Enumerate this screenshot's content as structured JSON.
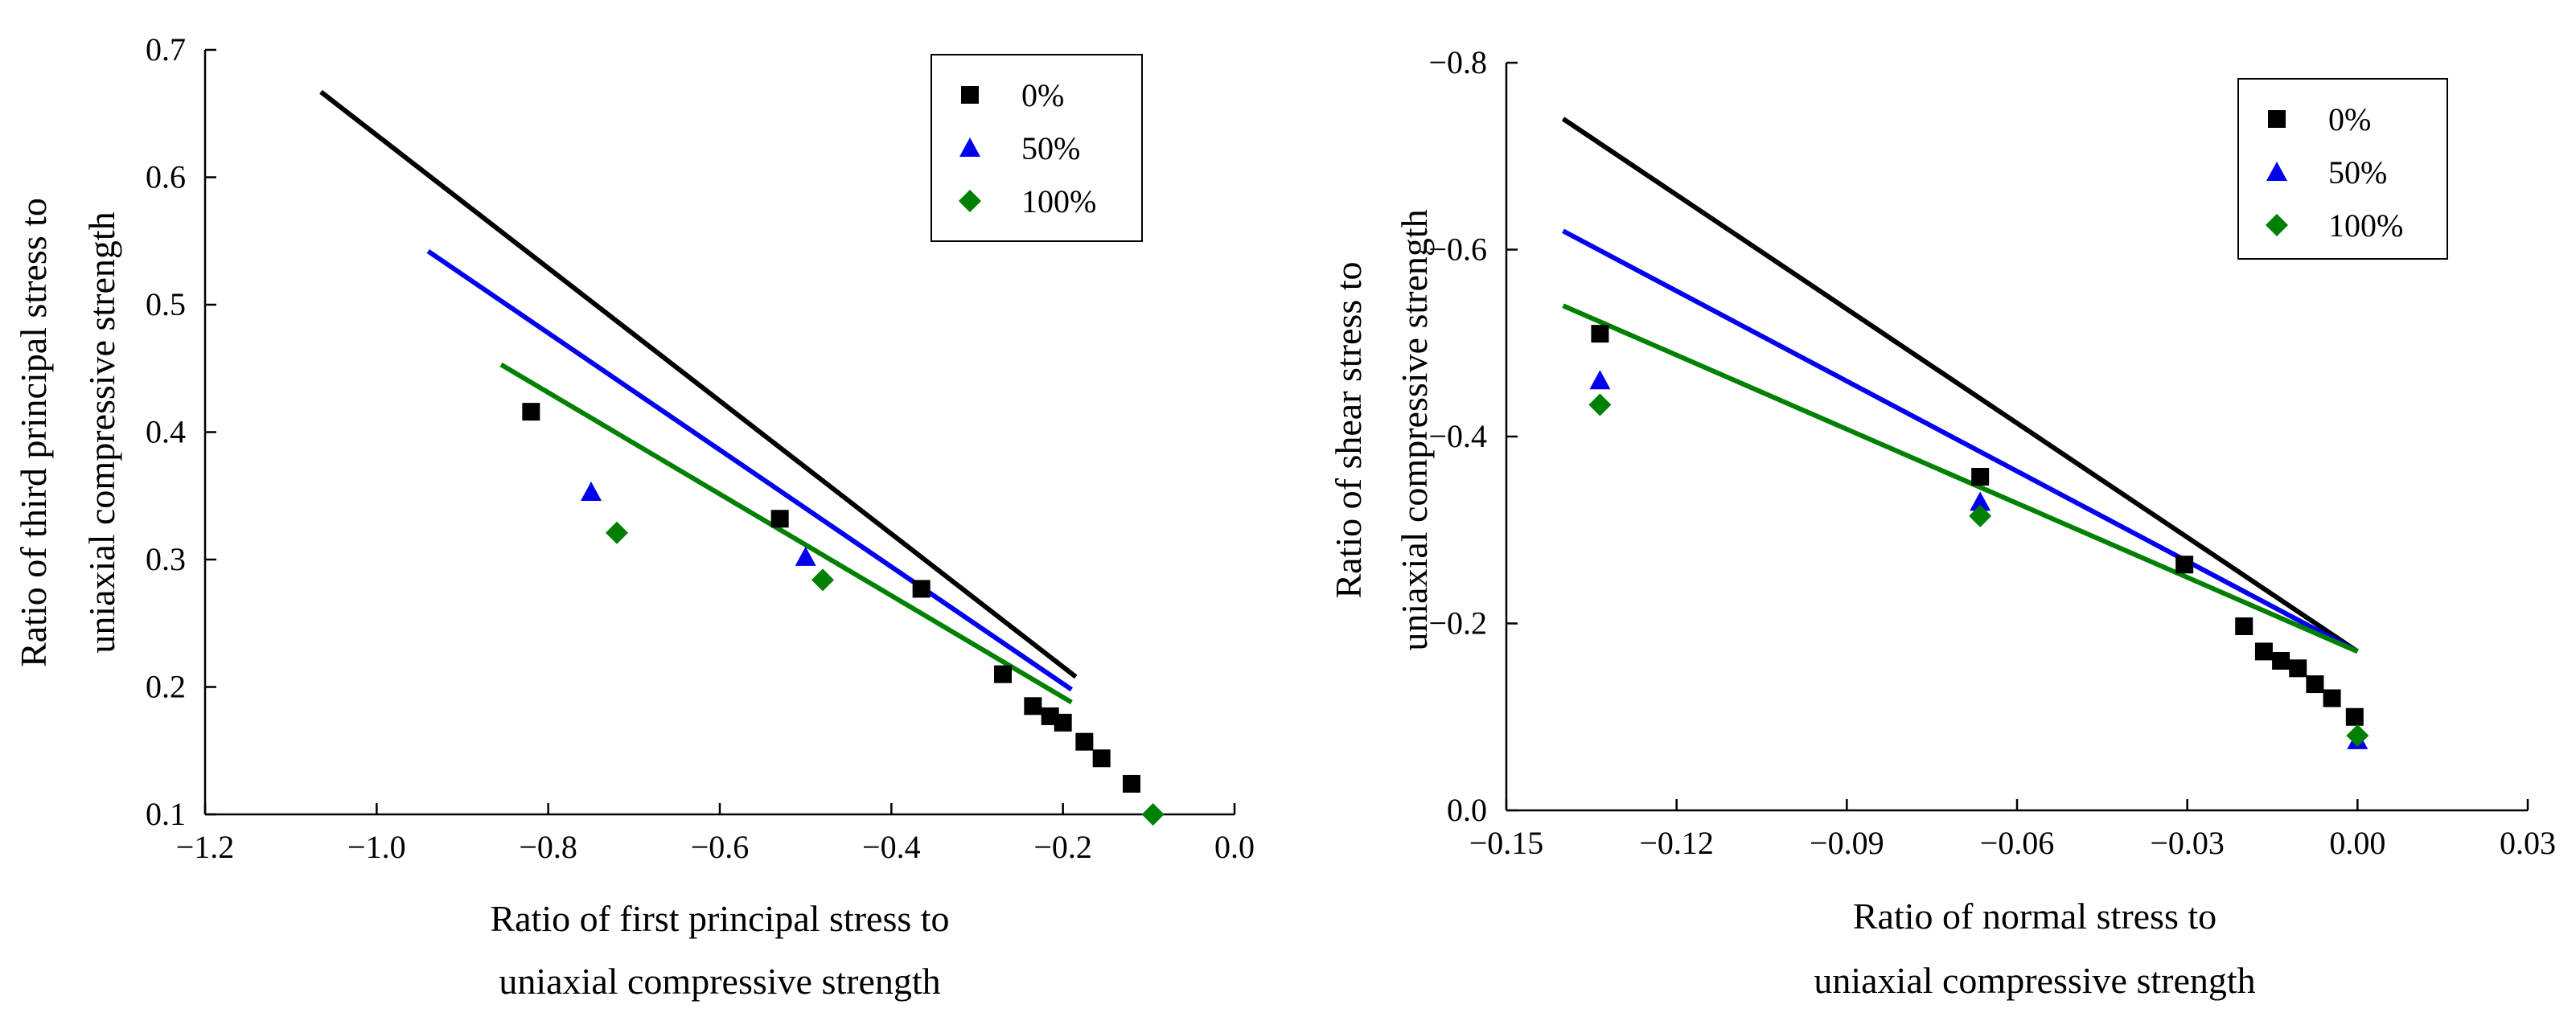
{
  "chart_data": [
    {
      "type": "scatter",
      "xlabel": [
        "Ratio of first principal stress to",
        "uniaxial compressive strength"
      ],
      "ylabel": [
        "Ratio of third principal stress to",
        "uniaxial compressive strength"
      ],
      "xlim": [
        -1.2,
        0.0
      ],
      "ylim": [
        0.1,
        0.7
      ],
      "xticks": [
        "−1.2",
        "−1.0",
        "−0.8",
        "−0.6",
        "−0.4",
        "−0.2",
        "0.0"
      ],
      "yticks": [
        "0.1",
        "0.2",
        "0.3",
        "0.4",
        "0.5",
        "0.6",
        "0.7"
      ],
      "legend": {
        "position": "top-right",
        "entries": [
          "0%",
          "50%",
          "100%"
        ]
      },
      "series": [
        {
          "name": "0%",
          "marker": "square",
          "color": "#000000",
          "points": [
            [
              -0.82,
              0.416
            ],
            [
              -0.53,
              0.332
            ],
            [
              -0.365,
              0.277
            ],
            [
              -0.27,
              0.21
            ],
            [
              -0.235,
              0.185
            ],
            [
              -0.215,
              0.177
            ],
            [
              -0.2,
              0.172
            ],
            [
              -0.175,
              0.157
            ],
            [
              -0.155,
              0.144
            ],
            [
              -0.12,
              0.124
            ]
          ]
        },
        {
          "name": "50%",
          "marker": "triangle",
          "color": "#0000ee",
          "points": [
            [
              -0.75,
              0.353
            ],
            [
              -0.5,
              0.302
            ]
          ]
        },
        {
          "name": "100%",
          "marker": "diamond",
          "color": "#008000",
          "points": [
            [
              -0.72,
              0.321
            ],
            [
              -0.48,
              0.284
            ],
            [
              -0.095,
              0.1
            ]
          ]
        }
      ],
      "lines": [
        {
          "name": "0%",
          "color": "#000000",
          "x": [
            -1.065,
            -0.185
          ],
          "y": [
            0.667,
            0.208
          ]
        },
        {
          "name": "50%",
          "color": "#0000ee",
          "x": [
            -0.94,
            -0.19
          ],
          "y": [
            0.542,
            0.198
          ]
        },
        {
          "name": "100%",
          "color": "#008000",
          "x": [
            -0.855,
            -0.19
          ],
          "y": [
            0.453,
            0.188
          ]
        }
      ]
    },
    {
      "type": "scatter",
      "xlabel": [
        "Ratio of normal stress to",
        "uniaxial compressive strength"
      ],
      "ylabel": [
        "Ratio of shear stress to",
        "uniaxial compressive strength"
      ],
      "xlim": [
        -0.15,
        0.03
      ],
      "ylim": [
        0.0,
        -0.8
      ],
      "xticks": [
        "−0.15",
        "−0.12",
        "−0.09",
        "−0.06",
        "−0.03",
        "0.00",
        "0.03"
      ],
      "yticks": [
        "0.0",
        "−0.2",
        "−0.4",
        "−0.6",
        "−0.8"
      ],
      "legend": {
        "position": "top-right",
        "entries": [
          "0%",
          "50%",
          "100%"
        ]
      },
      "series": [
        {
          "name": "0%",
          "marker": "square",
          "color": "#000000",
          "points": [
            [
              -0.1335,
              -0.51
            ],
            [
              -0.0665,
              -0.357
            ],
            [
              -0.0305,
              -0.263
            ],
            [
              -0.02,
              -0.197
            ],
            [
              -0.0165,
              -0.17
            ],
            [
              -0.0135,
              -0.16
            ],
            [
              -0.0105,
              -0.152
            ],
            [
              -0.0075,
              -0.135
            ],
            [
              -0.0045,
              -0.12
            ],
            [
              -0.0005,
              -0.1
            ]
          ]
        },
        {
          "name": "50%",
          "marker": "triangle",
          "color": "#0000ee",
          "points": [
            [
              -0.1335,
              -0.46
            ],
            [
              -0.0665,
              -0.33
            ],
            [
              0.0,
              -0.075
            ]
          ]
        },
        {
          "name": "100%",
          "marker": "diamond",
          "color": "#008000",
          "points": [
            [
              -0.1335,
              -0.434
            ],
            [
              -0.0665,
              -0.315
            ],
            [
              0.0,
              -0.08
            ]
          ]
        }
      ],
      "lines": [
        {
          "name": "0%",
          "color": "#000000",
          "x": [
            -0.14,
            0.0
          ],
          "y": [
            -0.74,
            -0.17
          ]
        },
        {
          "name": "50%",
          "color": "#0000ee",
          "x": [
            -0.14,
            0.0
          ],
          "y": [
            -0.62,
            -0.17
          ]
        },
        {
          "name": "100%",
          "color": "#008000",
          "x": [
            -0.14,
            0.0
          ],
          "y": [
            -0.54,
            -0.17
          ]
        }
      ]
    }
  ]
}
